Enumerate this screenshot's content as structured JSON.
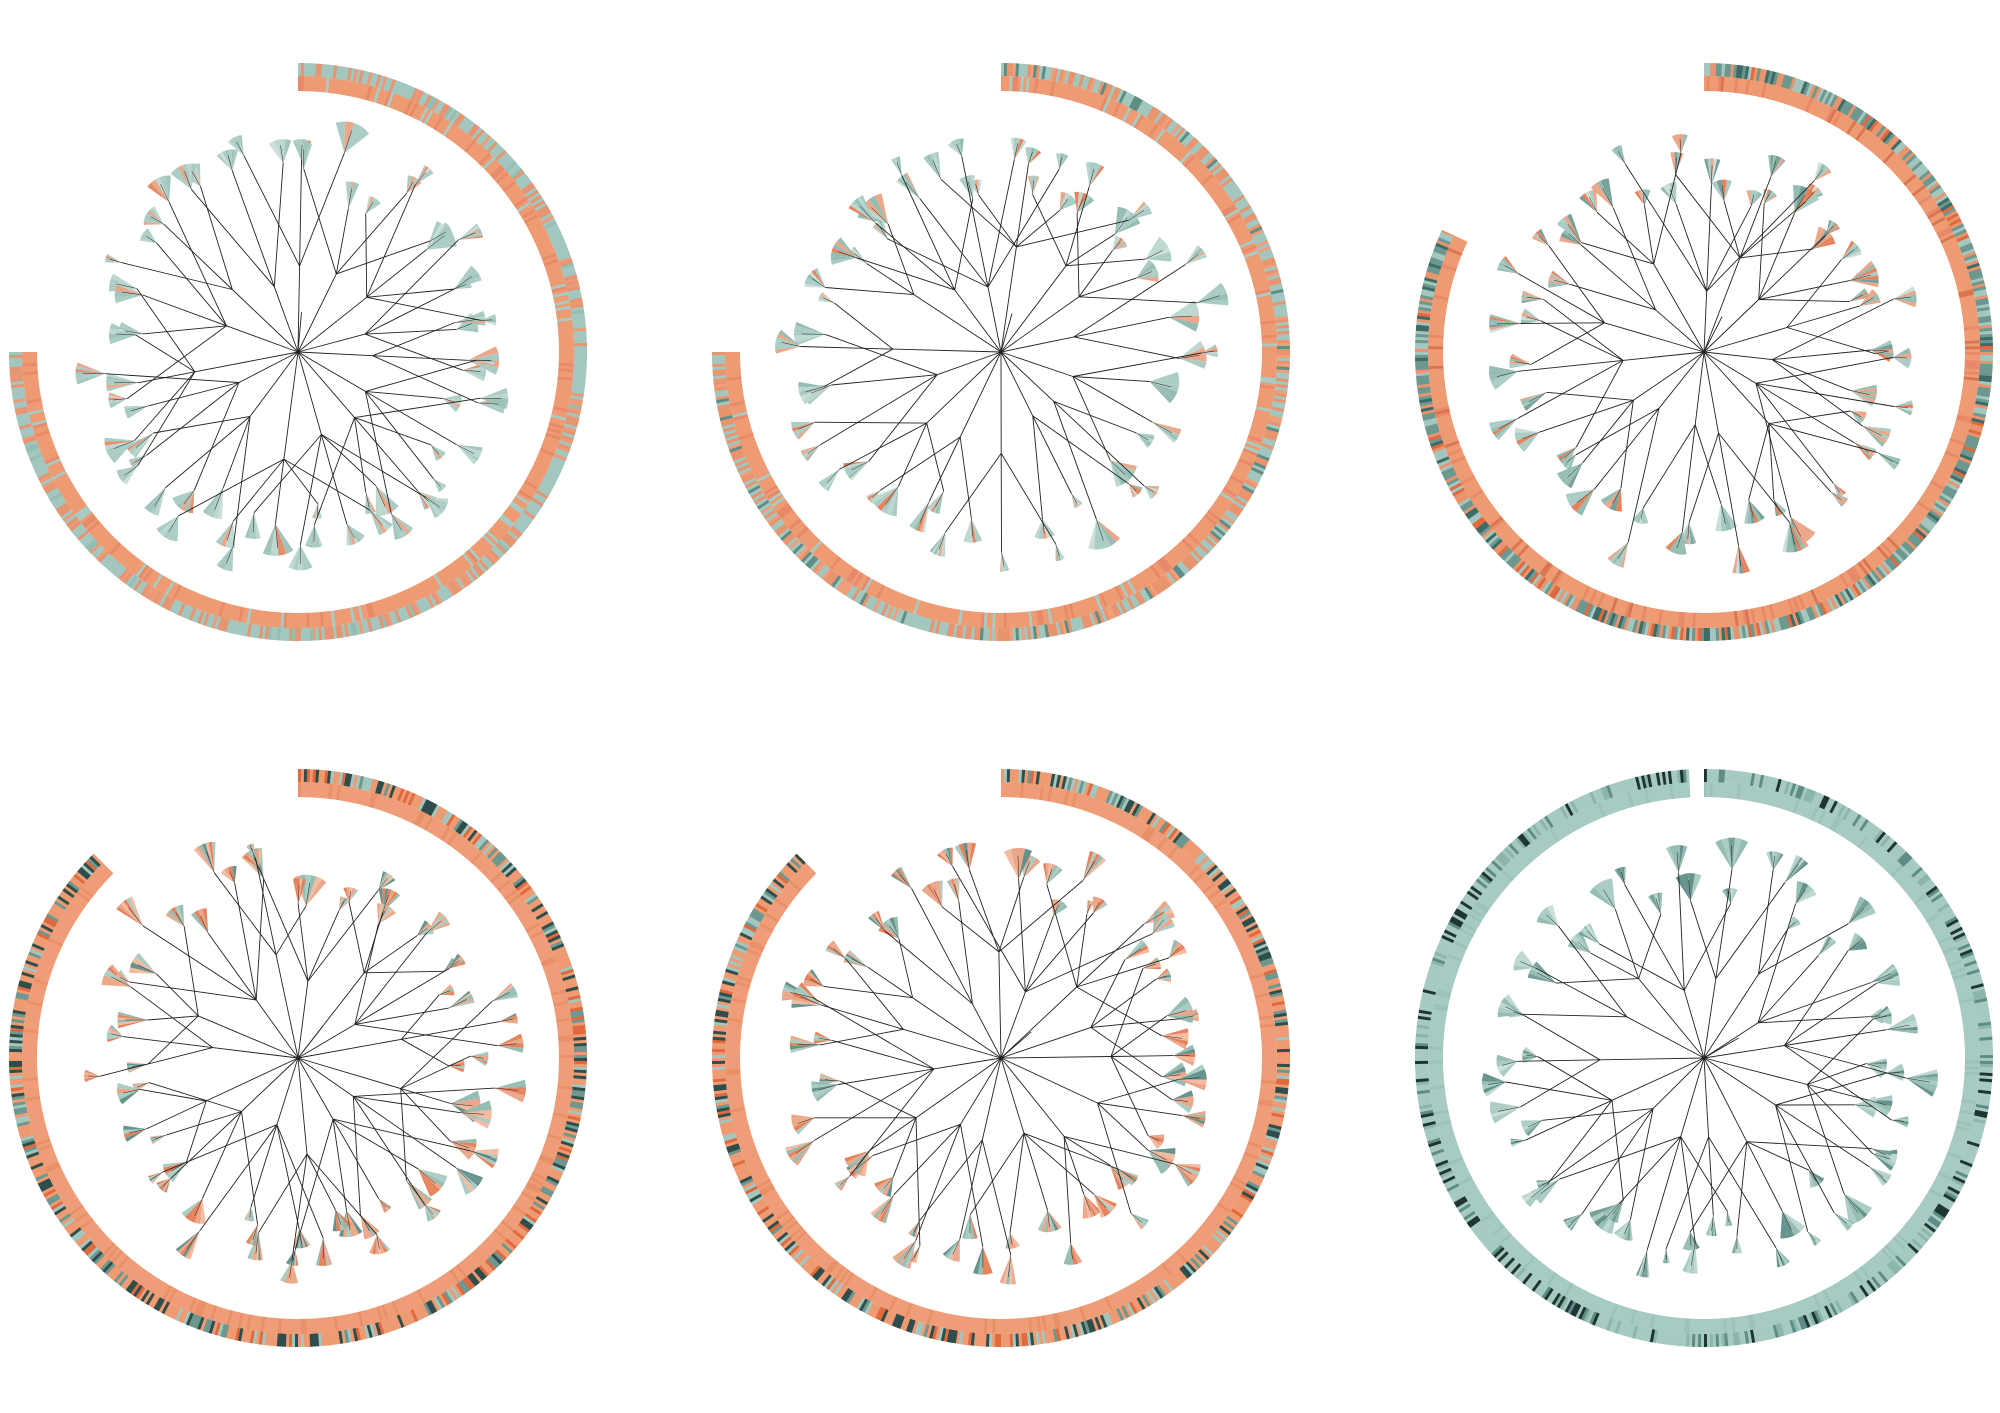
{
  "figure": {
    "panels": [
      {
        "outer_ring": {
          "angle_from": 0,
          "angle_to": 270,
          "colors": [
            "#e59572",
            "#a3c7bf",
            "#ec9a77",
            "#94beb4"
          ],
          "weights": [
            0.25,
            0.6,
            0.1,
            0.05
          ]
        },
        "inner_ring": {
          "angle_from": 0,
          "angle_to": 270,
          "colors": [
            "#ee9a72",
            "#e8896a",
            "#a8cbc3"
          ],
          "weights": [
            0.8,
            0.12,
            0.08
          ]
        },
        "fan_colors": [
          "#a7c9c1",
          "#b9d6cf",
          "#9cc2b9",
          "#e9a283",
          "#e38866",
          "#c9ddd7"
        ],
        "fan_weights": [
          0.45,
          0.2,
          0.15,
          0.1,
          0.05,
          0.05
        ]
      },
      {
        "outer_ring": {
          "angle_from": 0,
          "angle_to": 270,
          "colors": [
            "#a3c7bf",
            "#e8946f",
            "#5e8d86",
            "#ef9f7a"
          ],
          "weights": [
            0.45,
            0.35,
            0.1,
            0.1
          ]
        },
        "inner_ring": {
          "angle_from": 0,
          "angle_to": 270,
          "colors": [
            "#ee9a72",
            "#e8896a",
            "#a8cbc3"
          ],
          "weights": [
            0.82,
            0.1,
            0.08
          ]
        },
        "fan_colors": [
          "#a7c9c1",
          "#b9d6cf",
          "#8fb9b0",
          "#e9a283",
          "#e57c53",
          "#c9ddd7"
        ],
        "fan_weights": [
          0.4,
          0.2,
          0.15,
          0.13,
          0.07,
          0.05
        ]
      },
      {
        "outer_ring": {
          "angle_from": 0,
          "angle_to": 295,
          "colors": [
            "#6d9890",
            "#a3c7bf",
            "#e8946f",
            "#3d6b66",
            "#e06a3e"
          ],
          "weights": [
            0.35,
            0.25,
            0.2,
            0.12,
            0.08
          ]
        },
        "inner_ring": {
          "angle_from": 0,
          "angle_to": 295,
          "colors": [
            "#ee9a72",
            "#e8896a",
            "#d97650"
          ],
          "weights": [
            0.8,
            0.12,
            0.08
          ]
        },
        "fan_colors": [
          "#8fb9b0",
          "#a7c9c1",
          "#e9a283",
          "#e57c53",
          "#6f9b93",
          "#c9ddd7"
        ],
        "fan_weights": [
          0.3,
          0.2,
          0.2,
          0.12,
          0.1,
          0.08
        ]
      },
      {
        "outer_ring": {
          "angle_from": 0,
          "angle_to": 315,
          "colors": [
            "#ee9a72",
            "#2f4d4a",
            "#6d9890",
            "#e06a3e",
            "#a3c7bf"
          ],
          "weights": [
            0.45,
            0.2,
            0.15,
            0.1,
            0.1
          ]
        },
        "inner_ring": {
          "angle_from": 0,
          "angle_to": 315,
          "colors": [
            "#ef9d78",
            "#ea9069"
          ],
          "weights": [
            0.85,
            0.15
          ]
        },
        "fan_colors": [
          "#e9a283",
          "#e57c53",
          "#a7c9c1",
          "#8fb9b0",
          "#f2b79c",
          "#5e8d86"
        ],
        "fan_weights": [
          0.3,
          0.18,
          0.18,
          0.12,
          0.12,
          0.1
        ]
      },
      {
        "outer_ring": {
          "angle_from": 0,
          "angle_to": 315,
          "colors": [
            "#ee9a72",
            "#2f4d4a",
            "#a3c7bf",
            "#e06a3e",
            "#6d9890"
          ],
          "weights": [
            0.45,
            0.2,
            0.15,
            0.1,
            0.1
          ]
        },
        "inner_ring": {
          "angle_from": 0,
          "angle_to": 315,
          "colors": [
            "#ef9d78",
            "#ea9069"
          ],
          "weights": [
            0.85,
            0.15
          ]
        },
        "fan_colors": [
          "#e9a283",
          "#a7c9c1",
          "#e57c53",
          "#8fb9b0",
          "#5e8d86",
          "#f2b79c"
        ],
        "fan_weights": [
          0.3,
          0.2,
          0.15,
          0.15,
          0.1,
          0.1
        ]
      },
      {
        "outer_ring": {
          "angle_from": 0,
          "angle_to": 357,
          "colors": [
            "#a6c9c1",
            "#1f3533",
            "#5e8d86",
            "#8cb5ac"
          ],
          "weights": [
            0.6,
            0.18,
            0.12,
            0.1
          ]
        },
        "inner_ring": {
          "angle_from": 0,
          "angle_to": 357,
          "colors": [
            "#a7cac2",
            "#9cc2b9"
          ],
          "weights": [
            0.85,
            0.15
          ]
        },
        "fan_colors": [
          "#a7c9c1",
          "#8fb9b0",
          "#5e8d86",
          "#b9d6cf",
          "#6f9b93",
          "#c9ddd7"
        ],
        "fan_weights": [
          0.35,
          0.2,
          0.15,
          0.15,
          0.1,
          0.05
        ]
      }
    ]
  }
}
